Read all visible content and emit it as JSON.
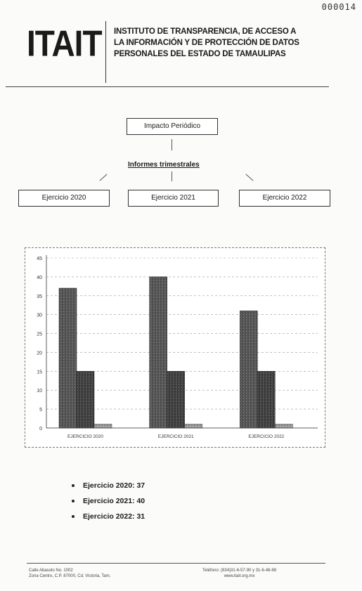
{
  "page_number": "000014",
  "header": {
    "logo": "ITAIT",
    "institution_lines": [
      "INSTITUTO DE TRANSPARENCIA, DE ACCESO A",
      "LA INFORMACIÓN Y DE PROTECCIÓN DE DATOS",
      "PERSONALES DEL ESTADO DE TAMAULIPAS"
    ]
  },
  "diagram": {
    "root": "Impacto Periódico",
    "sublabel": "Informes trimestrales",
    "children": [
      "Ejercicio 2020",
      "Ejercicio 2021",
      "Ejercicio 2022"
    ]
  },
  "chart_data": {
    "type": "bar",
    "categories": [
      "EJERCICIO 2020",
      "EJERCICIO 2021",
      "EJERCICIO 2022"
    ],
    "series": [
      {
        "values": [
          37,
          40,
          31
        ],
        "color": "#555555"
      },
      {
        "values": [
          15,
          15,
          15
        ],
        "color": "#3f3f3f"
      },
      {
        "values": [
          1,
          1,
          1
        ],
        "color": "#9a9a9a"
      }
    ],
    "ylim": [
      0,
      45
    ],
    "yticks": [
      0,
      5,
      10,
      15,
      20,
      25,
      30,
      35,
      40,
      45
    ],
    "grid": true
  },
  "summary": [
    "Ejercicio 2020: 37",
    "Ejercicio 2021: 40",
    "Ejercicio 2022: 31"
  ],
  "footer": {
    "left_lines": [
      "Calle Abasolo  No. 1002",
      "Zona Centro, C.P. 87000,  Cd. Victoria, Tam."
    ],
    "right_lines": [
      "Teléfono: (834)31-6-57-90 y 31-6-48-88",
      "www.itait.org.mx"
    ]
  }
}
